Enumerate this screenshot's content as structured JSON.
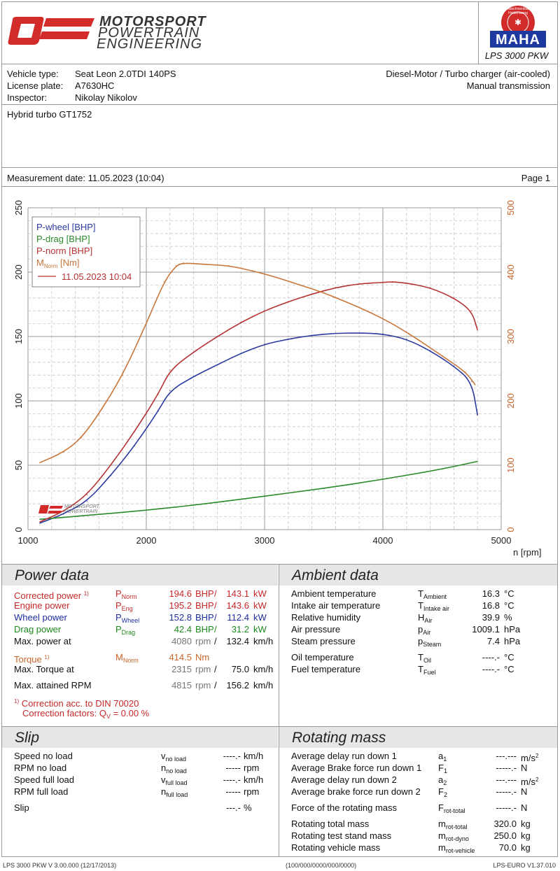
{
  "header": {
    "logo_text": [
      "MOTORSPORT",
      "POWERTRAIN",
      "ENGINEERING"
    ],
    "maha_text": "MAHA",
    "maha_ring": "Maschinenbau Haldenwang",
    "model": "LPS 3000 PKW"
  },
  "vehicle": {
    "type_label": "Vehicle type:",
    "type_value": "Seat Leon 2.0TDI 140PS",
    "plate_label": "License plate:",
    "plate_value": "A7630HC",
    "inspector_label": "Inspector:",
    "inspector_value": "Nikolay Nikolov",
    "engine": "Diesel-Motor / Turbo charger (air-cooled)",
    "transmission": "Manual transmission",
    "note": "Hybrid turbo GT1752"
  },
  "measurement": {
    "date": "Measurement date: 11.05.2023 (10:04)",
    "page": "Page 1"
  },
  "chart_data": {
    "type": "line",
    "x_label": "n [rpm]",
    "xlim": [
      1000,
      5000
    ],
    "ylim_left": [
      0,
      250
    ],
    "ylim_right": [
      0,
      500
    ],
    "x_ticks": [
      "1000",
      "2000",
      "3000",
      "4000",
      "5000"
    ],
    "y_ticks_left": [
      "0",
      "50",
      "100",
      "150",
      "200",
      "250"
    ],
    "y_ticks_right": [
      "0",
      "100",
      "200",
      "300",
      "400",
      "500"
    ],
    "grid": true,
    "legend_position": "top-left",
    "legend": [
      "P-wheel [BHP]",
      "P-drag [BHP]",
      "P-norm [BHP]",
      "M",
      "Norm",
      " [Nm]",
      "11.05.2023 10:04"
    ],
    "series": [
      {
        "name": "P-wheel [BHP]",
        "axis": "left",
        "color": "#2b3a9e",
        "x": [
          1100,
          1300,
          1500,
          1700,
          1900,
          2100,
          2200,
          2400,
          2600,
          2800,
          3000,
          3200,
          3400,
          3600,
          3800,
          4000,
          4200,
          4400,
          4600,
          4750,
          4800
        ],
        "y": [
          5,
          12,
          22,
          42,
          65,
          92,
          108,
          119,
          128,
          137,
          144,
          148,
          151,
          152.5,
          152.8,
          152,
          148,
          139,
          127,
          115,
          89
        ]
      },
      {
        "name": "P-drag [BHP]",
        "axis": "left",
        "color": "#2a8a2a",
        "x": [
          1100,
          1500,
          2000,
          2500,
          3000,
          3500,
          4000,
          4500,
          4800
        ],
        "y": [
          8,
          11,
          15,
          20,
          26,
          32,
          39,
          47,
          53
        ]
      },
      {
        "name": "P-norm [BHP]",
        "axis": "left",
        "color": "#b53232",
        "x": [
          1100,
          1300,
          1500,
          1700,
          1900,
          2100,
          2200,
          2400,
          2600,
          2800,
          3000,
          3200,
          3400,
          3600,
          3800,
          4000,
          4080,
          4200,
          4400,
          4600,
          4750,
          4800
        ],
        "y": [
          6,
          14,
          27,
          50,
          76,
          105,
          124,
          138,
          150,
          161,
          170,
          177,
          183,
          188,
          191,
          192,
          192.5,
          191.5,
          188,
          180,
          170,
          155
        ]
      },
      {
        "name": "M [Nm]",
        "axis": "right",
        "color": "#c8763a",
        "x": [
          1100,
          1300,
          1450,
          1600,
          1800,
          2000,
          2150,
          2250,
          2315,
          2500,
          2700,
          2900,
          3100,
          3300,
          3500,
          3700,
          3900,
          4100,
          4300,
          4500,
          4700,
          4780
        ],
        "y": [
          104,
          120,
          142,
          180,
          240,
          320,
          385,
          410,
          414.5,
          412,
          410,
          402,
          392,
          380,
          368,
          353,
          337,
          318,
          295,
          270,
          245,
          225
        ]
      }
    ]
  },
  "power": {
    "title": "Power data",
    "corrected": {
      "label": "Corrected power",
      "mark": "1)",
      "sym": "P",
      "sub": "Norm",
      "bhp": "194.6",
      "kw": "143.1"
    },
    "engine": {
      "label": "Engine power",
      "sym": "P",
      "sub": "Eng",
      "bhp": "195.2",
      "kw": "143.6"
    },
    "wheel": {
      "label": "Wheel power",
      "sym": "P",
      "sub": "Wheel",
      "bhp": "152.8",
      "kw": "112.4"
    },
    "drag": {
      "label": "Drag power",
      "sym": "P",
      "sub": "Drag",
      "bhp": "42.4",
      "kw": "31.2"
    },
    "maxpower": {
      "label": "Max. power at",
      "rpm": "4080",
      "kmh": "132.4"
    },
    "torque": {
      "label": "Torque",
      "mark": "1)",
      "sym": "M",
      "sub": "Norm",
      "value": "414.5",
      "unit": "Nm"
    },
    "maxtorque": {
      "label": "Max. Torque at",
      "rpm": "2315",
      "kmh": "75.0"
    },
    "maxrpm": {
      "label": "Max. attained RPM",
      "rpm": "4815",
      "kmh": "156.2"
    },
    "units": {
      "bhp": "BHP",
      "slash": "/",
      "kw": "kW",
      "rpm": "rpm",
      "kmh": "km/h"
    },
    "footnote1_mark": "1)",
    "footnote1": " Correction acc. to DIN 70020",
    "footnote2_a": "Correction factors: Q",
    "footnote2_sub": "V",
    "footnote2_b": " =    0.00 %"
  },
  "ambient": {
    "title": "Ambient data",
    "rows": [
      {
        "label": "Ambient temperature",
        "sym": "T",
        "sub": "Ambient",
        "value": "16.3",
        "unit": "°C"
      },
      {
        "label": "Intake air temperature",
        "sym": "T",
        "sub": "Intake air",
        "value": "16.8",
        "unit": "°C"
      },
      {
        "label": "Relative humidity",
        "sym": "H",
        "sub": "Air",
        "value": "39.9",
        "unit": "%"
      },
      {
        "label": "Air pressure",
        "sym": "p",
        "sub": "Air",
        "value": "1009.1",
        "unit": "hPa"
      },
      {
        "label": "Steam pressure",
        "sym": "p",
        "sub": "Steam",
        "value": "7.4",
        "unit": "hPa"
      },
      {
        "label": "Oil temperature",
        "sym": "T",
        "sub": "Oil",
        "value": "----.-",
        "unit": "°C"
      },
      {
        "label": "Fuel temperature",
        "sym": "T",
        "sub": "Fuel",
        "value": "----.-",
        "unit": "°C"
      }
    ]
  },
  "slip": {
    "title": "Slip",
    "rows": [
      {
        "label": "Speed no load",
        "sym": "v",
        "sub": "no load",
        "value": "----.-",
        "unit": "km/h"
      },
      {
        "label": "RPM no load",
        "sym": "n",
        "sub": "no load",
        "value": "-----",
        "unit": "rpm"
      },
      {
        "label": "Speed full load",
        "sym": "v",
        "sub": "full load",
        "value": "----.-",
        "unit": "km/h"
      },
      {
        "label": "RPM full load",
        "sym": "n",
        "sub": "full load",
        "value": "-----",
        "unit": "rpm"
      },
      {
        "label": "Slip",
        "sym": "",
        "sub": "",
        "value": "---.-",
        "unit": "%"
      }
    ]
  },
  "rotating": {
    "title": "Rotating mass",
    "rows": [
      {
        "label": "Average delay run down 1",
        "sym": "a",
        "sub": "1",
        "value": "---.---",
        "unit": "m/s",
        "sup": "2"
      },
      {
        "label": "Average Brake force run down 1",
        "sym": "F",
        "sub": "1",
        "value": "-----.-",
        "unit": "N",
        "sup": ""
      },
      {
        "label": "Average delay run down 2",
        "sym": "a",
        "sub": "2",
        "value": "---.---",
        "unit": "m/s",
        "sup": "2"
      },
      {
        "label": "Average brake force run down 2",
        "sym": "F",
        "sub": "2",
        "value": "-----.-",
        "unit": "N",
        "sup": ""
      },
      {
        "label": "Force of the rotating mass",
        "sym": "F",
        "sub": "rot-total",
        "value": "-----.-",
        "unit": "N",
        "sup": ""
      },
      {
        "label": "Rotating total mass",
        "sym": "m",
        "sub": "rot-total",
        "value": "320.0",
        "unit": "kg",
        "sup": ""
      },
      {
        "label": "Rotating test stand mass",
        "sym": "m",
        "sub": "rot-dyno",
        "value": "250.0",
        "unit": "kg",
        "sup": ""
      },
      {
        "label": "Rotating vehicle mass",
        "sym": "m",
        "sub": "rot-vehicle",
        "value": "70.0",
        "unit": "kg",
        "sup": ""
      }
    ]
  },
  "footer": {
    "left": "LPS 3000 PKW V 3.00.000 (12/17/2013)",
    "center": "(100/000/0000/000/0000)",
    "right": "LPS-EURO V1.37.010"
  },
  "colors": {
    "red": "#c8282a",
    "blue": "#1e2f9e",
    "green": "#1e8a1e",
    "orange": "#c8642a",
    "grid": "#bbbbbb"
  }
}
